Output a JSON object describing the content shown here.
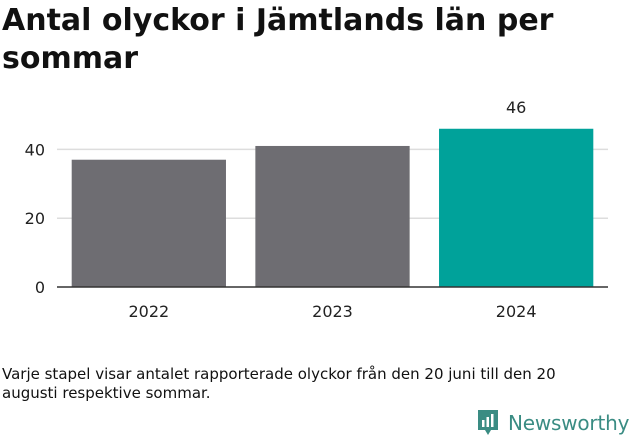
{
  "title": "Antal olyckor i Jämtlands län per sommar",
  "chart_data": {
    "type": "bar",
    "title": "Antal olyckor i Jämtlands län per sommar",
    "categories": [
      "2022",
      "2023",
      "2024"
    ],
    "values": [
      37,
      41,
      46
    ],
    "data_labels": [
      "",
      "",
      "46"
    ],
    "xlabel": "",
    "ylabel": "",
    "ylim": [
      0,
      50
    ],
    "yticks": [
      0,
      20,
      40
    ],
    "grid": true,
    "colors": {
      "bar": "#6e6d72",
      "highlight": "#00a29a",
      "grid": "#dddddd",
      "axis": "#333333"
    },
    "highlight_index": 2
  },
  "footnote": "Varje stapel visar antalet rapporterade olyckor från den 20 juni till den 20 augusti respektive sommar.",
  "brand": {
    "name": "Newsworthy",
    "icon": "newsworthy-logo-icon",
    "color": "#3a8c83"
  }
}
